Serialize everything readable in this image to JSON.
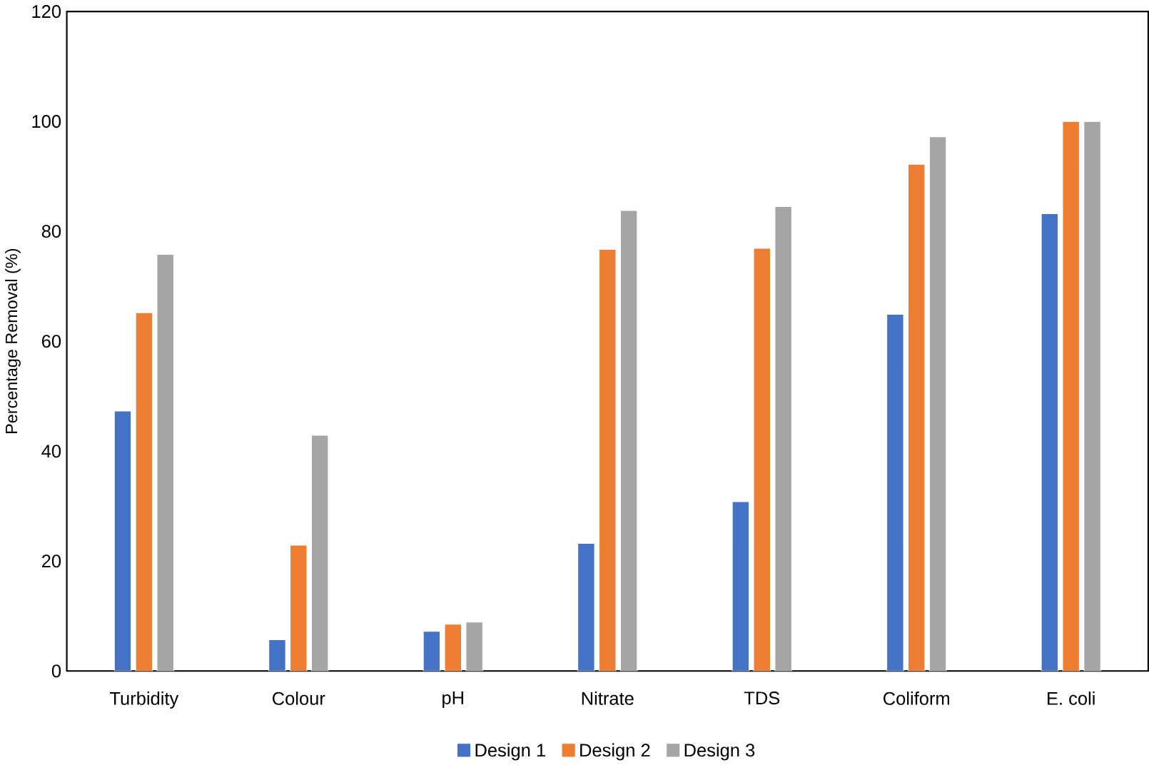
{
  "chart_data": {
    "type": "bar",
    "ylabel": "Percentage Removal (%)",
    "categories": [
      "Turbidity",
      "Colour",
      "pH",
      "Nitrate",
      "TDS",
      "Coliform",
      "E. coli"
    ],
    "series": [
      {
        "name": "Design 1",
        "color": "#4472c4",
        "values": [
          47.3,
          5.7,
          7.2,
          23.2,
          30.8,
          64.9,
          83.2
        ]
      },
      {
        "name": "Design 2",
        "color": "#ed7d31",
        "values": [
          65.2,
          22.9,
          8.5,
          76.7,
          76.9,
          92.2,
          100
        ]
      },
      {
        "name": "Design 3",
        "color": "#a5a5a5",
        "values": [
          75.8,
          42.9,
          8.9,
          83.8,
          84.5,
          97.2,
          100
        ]
      }
    ],
    "ylim": [
      0,
      120
    ],
    "yticks": [
      0,
      20,
      40,
      60,
      80,
      100,
      120
    ],
    "grid": false,
    "legend": "bottom"
  }
}
